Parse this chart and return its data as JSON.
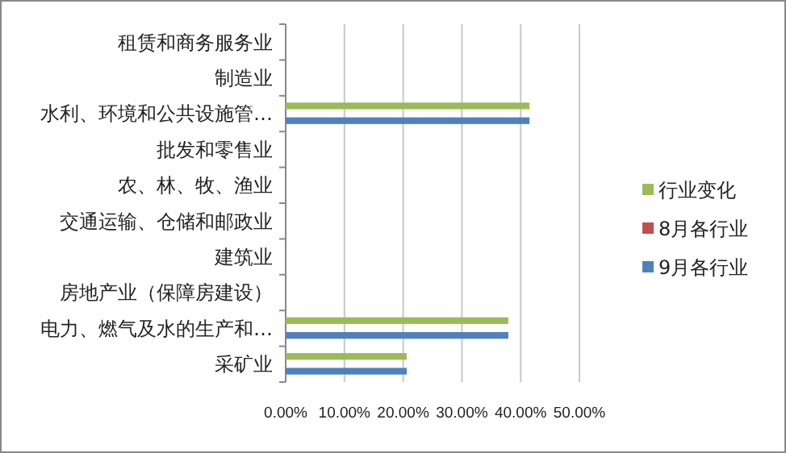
{
  "chart_data": {
    "type": "bar",
    "orientation": "horizontal",
    "categories": [
      "租赁和商务服务业",
      "制造业",
      "水利、环境和公共设施管…",
      "批发和零售业",
      "农、林、牧、渔业",
      "交通运输、仓储和邮政业",
      "建筑业",
      "房地产业（保障房建设）",
      "电力、燃气及水的生产和…",
      "采矿业"
    ],
    "series": [
      {
        "name": "行业变化",
        "color": "#9bbb59",
        "values": [
          null,
          null,
          41.5,
          null,
          null,
          null,
          null,
          null,
          37.9,
          20.6
        ]
      },
      {
        "name": "8月各行业",
        "color": "#c0504d",
        "values": [
          null,
          null,
          null,
          null,
          null,
          null,
          null,
          null,
          null,
          null
        ]
      },
      {
        "name": "9月各行业",
        "color": "#4f81bd",
        "values": [
          null,
          null,
          41.5,
          null,
          null,
          null,
          null,
          null,
          37.9,
          20.6
        ]
      }
    ],
    "xlim": [
      0,
      50
    ],
    "xticks": [
      {
        "value": 0,
        "label": "0.00%"
      },
      {
        "value": 10,
        "label": "10.00%"
      },
      {
        "value": 20,
        "label": "20.00%"
      },
      {
        "value": 30,
        "label": "30.00%"
      },
      {
        "value": 40,
        "label": "40.00%"
      },
      {
        "value": 50,
        "label": "50.00%"
      }
    ],
    "grid": "x",
    "legend": "right"
  }
}
